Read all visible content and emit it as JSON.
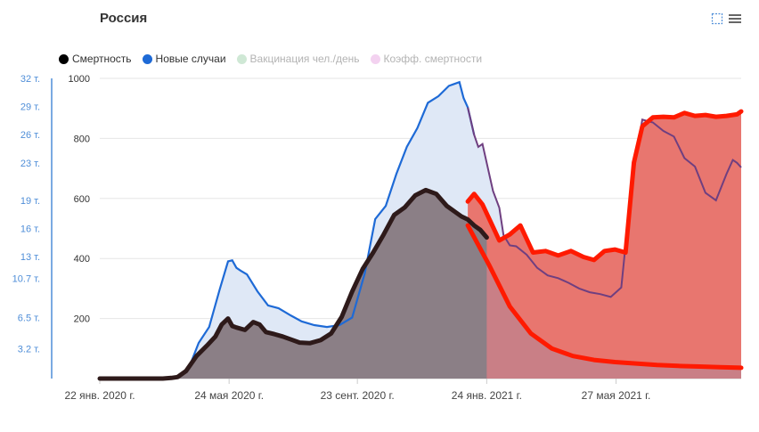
{
  "title": "Россия",
  "legend": [
    {
      "label": "Смертность",
      "color": "#000000",
      "muted": false
    },
    {
      "label": "Новые случаи",
      "color": "#1e6ad6",
      "muted": false
    },
    {
      "label": "Вакцинация чел./день",
      "color": "#cfe8d5",
      "muted": true
    },
    {
      "label": "Коэфф. смертности",
      "color": "#f3d2f0",
      "muted": true
    }
  ],
  "colors": {
    "cases_line": "#1e6ad6",
    "cases_fill": "#dfe8f6",
    "deaths_line": "#2e1a1a",
    "deaths_fill": "#8b7f86",
    "overlay_line": "#ff1a00",
    "overlay_fill": "#e8766f",
    "third_wave_line": "#6f3f80",
    "left_axis": "#4f8ed8",
    "grid": "#e6e6e6"
  },
  "chart_data": {
    "type": "area",
    "title": "Россия",
    "xlabel": "",
    "ylabel": "",
    "x_tick_labels": [
      "22 янв. 2020 г.",
      "24 мая 2020 г.",
      "23 сент. 2020 г.",
      "24 янв. 2021 г.",
      "27 мая 2021 г."
    ],
    "x_ticks_days": [
      0,
      123,
      245,
      368,
      491
    ],
    "x_range_days": [
      0,
      610
    ],
    "y_left_ticks": [
      "32 т.",
      "29 т.",
      "26 т.",
      "23 т.",
      "19 т.",
      "16 т.",
      "13 т.",
      "10.7 т.",
      "6.5 т.",
      "3.2 т."
    ],
    "y_left_values": [
      32000,
      29000,
      26000,
      23000,
      19000,
      16000,
      13000,
      10700,
      6500,
      3200
    ],
    "y_left_range": [
      0,
      32000
    ],
    "y_right_ticks": [
      200,
      400,
      600,
      800,
      1000
    ],
    "y_right_range": [
      0,
      1000
    ],
    "grid": true,
    "legend_position": "top-left",
    "series": [
      {
        "name": "Новые случаи",
        "axis": "left",
        "x": [
          0,
          60,
          74,
          84,
          94,
          104,
          114,
          122,
          126,
          130,
          134,
          140,
          150,
          160,
          170,
          182,
          192,
          204,
          216,
          228,
          240,
          252,
          262,
          272,
          282,
          292,
          302,
          312,
          322,
          332,
          342,
          346,
          350,
          356,
          360,
          364,
          374,
          380,
          384,
          390,
          396,
          406,
          416,
          426,
          436,
          446,
          456,
          466,
          476,
          486,
          496,
          506,
          516,
          526,
          536,
          546,
          556,
          566,
          576,
          586,
          596,
          602,
          606,
          610
        ],
        "values": [
          0,
          0,
          100,
          900,
          3800,
          5500,
          9500,
          12500,
          12600,
          11800,
          11500,
          11100,
          9300,
          7800,
          7500,
          6700,
          6100,
          5700,
          5500,
          5700,
          6500,
          11200,
          17000,
          18400,
          21800,
          24700,
          26700,
          29400,
          30100,
          31200,
          31600,
          29900,
          28900,
          26000,
          24700,
          25000,
          20000,
          18200,
          15300,
          14200,
          14100,
          13200,
          11800,
          11000,
          10700,
          10200,
          9600,
          9200,
          9000,
          8700,
          9700,
          20800,
          27600,
          27300,
          26400,
          25800,
          23500,
          22600,
          19800,
          19000,
          21800,
          23300,
          23000,
          22500
        ]
      },
      {
        "name": "Смертность",
        "axis": "right",
        "x": [
          0,
          60,
          68,
          74,
          82,
          92,
          102,
          110,
          116,
          122,
          126,
          130,
          138,
          146,
          152,
          158,
          166,
          174,
          182,
          190,
          200,
          210,
          220,
          230,
          240,
          250,
          260,
          270,
          280,
          290,
          300,
          310,
          320,
          330,
          338,
          344,
          350,
          356,
          362,
          368
        ],
        "values": [
          0,
          0,
          2,
          5,
          25,
          75,
          110,
          140,
          180,
          200,
          175,
          170,
          162,
          188,
          180,
          155,
          148,
          140,
          130,
          120,
          118,
          128,
          150,
          205,
          290,
          365,
          420,
          480,
          545,
          570,
          610,
          628,
          615,
          575,
          555,
          540,
          530,
          510,
          495,
          470
        ]
      },
      {
        "name": "",
        "axis": "right",
        "x": [
          350,
          356,
          364,
          372,
          380,
          390,
          400,
          412,
          424,
          436,
          448,
          460,
          470,
          480,
          490,
          500,
          508,
          516,
          526,
          536,
          546,
          556,
          566,
          576,
          586,
          596,
          606,
          610
        ],
        "values": [
          590,
          615,
          580,
          520,
          460,
          480,
          510,
          420,
          425,
          410,
          425,
          405,
          395,
          425,
          430,
          420,
          720,
          840,
          870,
          872,
          870,
          885,
          875,
          878,
          872,
          875,
          880,
          890
        ]
      },
      {
        "name": "",
        "axis": "right",
        "x": [
          350,
          370,
          390,
          410,
          430,
          450,
          470,
          490,
          510,
          530,
          550,
          570,
          590,
          610
        ],
        "values": [
          510,
          380,
          240,
          150,
          100,
          75,
          62,
          55,
          50,
          45,
          42,
          40,
          38,
          36
        ]
      }
    ]
  }
}
